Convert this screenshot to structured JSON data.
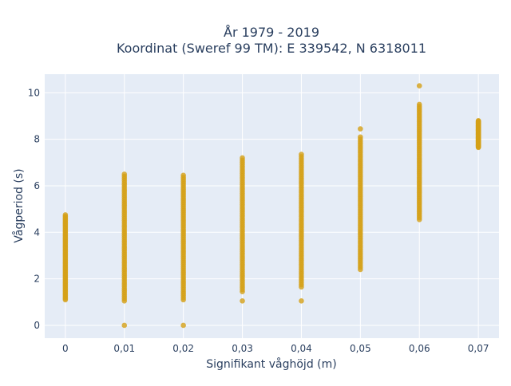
{
  "chart_data": {
    "type": "scatter",
    "title_line1": "År 1979 - 2019",
    "title_line2": "Koordinat (Sweref 99 TM): E 339542, N 6318011",
    "xlabel": "Signifikant våghöjd (m)",
    "ylabel": "Vågperiod (s)",
    "x_ticks": [
      {
        "value": 0,
        "label": "0"
      },
      {
        "value": 0.01,
        "label": "0,01"
      },
      {
        "value": 0.02,
        "label": "0,02"
      },
      {
        "value": 0.03,
        "label": "0,03"
      },
      {
        "value": 0.04,
        "label": "0,04"
      },
      {
        "value": 0.05,
        "label": "0,05"
      },
      {
        "value": 0.06,
        "label": "0,06"
      },
      {
        "value": 0.07,
        "label": "0,07"
      }
    ],
    "y_ticks": [
      {
        "value": 0,
        "label": "0"
      },
      {
        "value": 2,
        "label": "2"
      },
      {
        "value": 4,
        "label": "4"
      },
      {
        "value": 6,
        "label": "6"
      },
      {
        "value": 8,
        "label": "8"
      },
      {
        "value": 10,
        "label": "10"
      }
    ],
    "xlim": [
      -0.0035,
      0.0735
    ],
    "ylim": [
      -0.55,
      10.8
    ],
    "grid": true,
    "plot_bgcolor": "#e5ecf6",
    "marker_color": "#d4a017",
    "columns": [
      {
        "x": 0.0,
        "y_min": 1.1,
        "y_max": 4.75,
        "outliers": []
      },
      {
        "x": 0.01,
        "y_min": 1.05,
        "y_max": 6.5,
        "outliers": [
          0.0
        ]
      },
      {
        "x": 0.02,
        "y_min": 1.1,
        "y_max": 6.45,
        "outliers": [
          0.0
        ]
      },
      {
        "x": 0.03,
        "y_min": 1.45,
        "y_max": 7.2,
        "outliers": [
          1.05
        ]
      },
      {
        "x": 0.04,
        "y_min": 1.65,
        "y_max": 7.35,
        "outliers": [
          1.05
        ]
      },
      {
        "x": 0.05,
        "y_min": 2.4,
        "y_max": 8.1,
        "outliers": [
          8.45
        ]
      },
      {
        "x": 0.06,
        "y_min": 4.55,
        "y_max": 9.5,
        "outliers": [
          10.3
        ]
      },
      {
        "x": 0.07,
        "y_min": 7.65,
        "y_max": 8.8,
        "outliers": []
      }
    ]
  }
}
